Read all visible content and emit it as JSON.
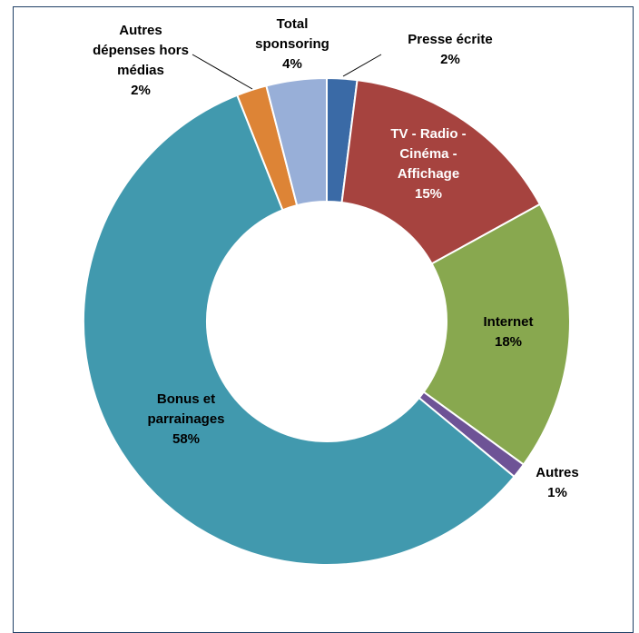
{
  "chart_data": {
    "type": "pie",
    "donut": true,
    "title": "",
    "legend": "none",
    "slices": [
      {
        "label_lines": [
          "Presse écrite",
          "2%"
        ],
        "value": 2,
        "color": "#3a6aa6"
      },
      {
        "label_lines": [
          "TV - Radio -",
          "Cinéma -",
          "Affichage",
          "15%"
        ],
        "value": 15,
        "color": "#a6433f"
      },
      {
        "label_lines": [
          "Internet",
          "18%"
        ],
        "value": 18,
        "color": "#88a84f"
      },
      {
        "label_lines": [
          "Autres",
          "1%"
        ],
        "value": 1,
        "color": "#6e5396"
      },
      {
        "label_lines": [
          "Bonus et",
          "parrainages",
          "58%"
        ],
        "value": 58,
        "color": "#4199ae"
      },
      {
        "label_lines": [
          "Autres",
          "dépenses hors",
          "médias",
          "2%"
        ],
        "value": 2,
        "color": "#dd8436"
      },
      {
        "label_lines": [
          "Total",
          "sponsoring",
          "4%"
        ],
        "value": 4,
        "color": "#98afd8"
      }
    ]
  }
}
